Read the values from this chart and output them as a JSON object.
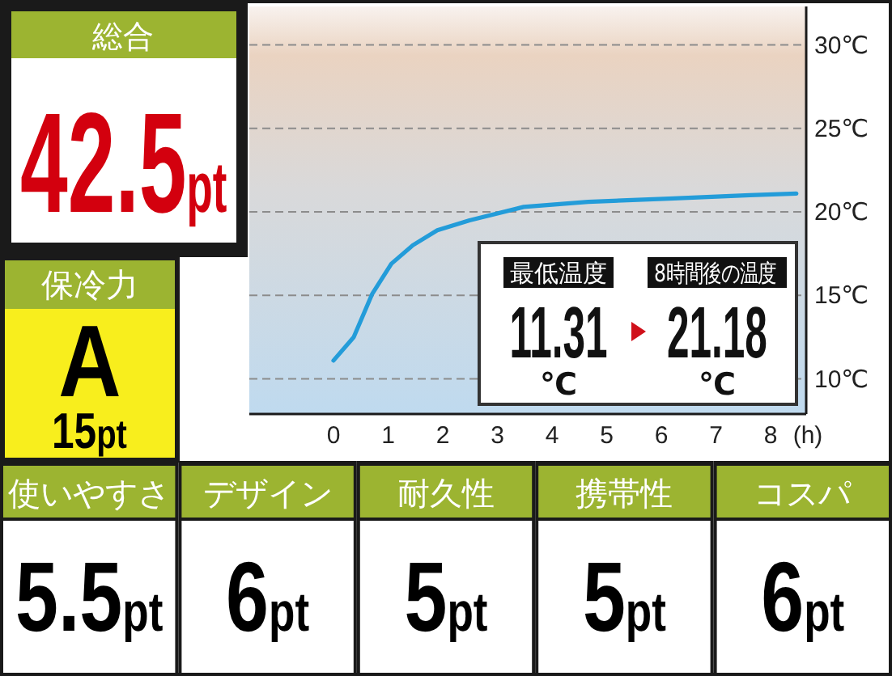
{
  "chart_data": [
    {
      "type": "other",
      "title": "総合",
      "annotations": [
        "42.5pt"
      ]
    },
    {
      "type": "line",
      "x": [
        0,
        0.37,
        0.71,
        1.06,
        1.45,
        1.9,
        2.49,
        3.48,
        4.66,
        6.14,
        7.62,
        8.47
      ],
      "series": [
        {
          "color": "#239cd9",
          "values": [
            11.1,
            12.5,
            15.1,
            16.9,
            18.0,
            18.9,
            19.5,
            20.3,
            20.6,
            20.8,
            21.0,
            21.1
          ]
        }
      ],
      "xlabel": "(h)",
      "xlim": [
        -1.54,
        8.65
      ],
      "xticks": [
        0,
        1,
        2,
        3,
        4,
        5,
        6,
        7,
        8
      ],
      "ylim": [
        7.9,
        32.3
      ],
      "yticks": [
        {
          "value": 10,
          "label": "10℃"
        },
        {
          "value": 15,
          "label": "15℃"
        },
        {
          "value": 20,
          "label": "20℃"
        },
        {
          "value": 25,
          "label": "25℃"
        },
        {
          "value": 30,
          "label": "30℃"
        }
      ],
      "grid": "y",
      "line_style": "solid",
      "annotations": [
        "最低温度",
        "11.31",
        "℃",
        "8時間後の温度",
        "21.18",
        "℃"
      ]
    },
    {
      "type": "other",
      "title": "保冷力",
      "annotations": [
        "A",
        "15pt"
      ]
    },
    {
      "type": "other",
      "categories": [
        "使いやすさ",
        "デザイン",
        "耐久性",
        "携帯性",
        "コスパ"
      ],
      "value_labels": [
        "5.5pt",
        "6pt",
        "5pt",
        "5pt",
        "6pt"
      ]
    }
  ]
}
